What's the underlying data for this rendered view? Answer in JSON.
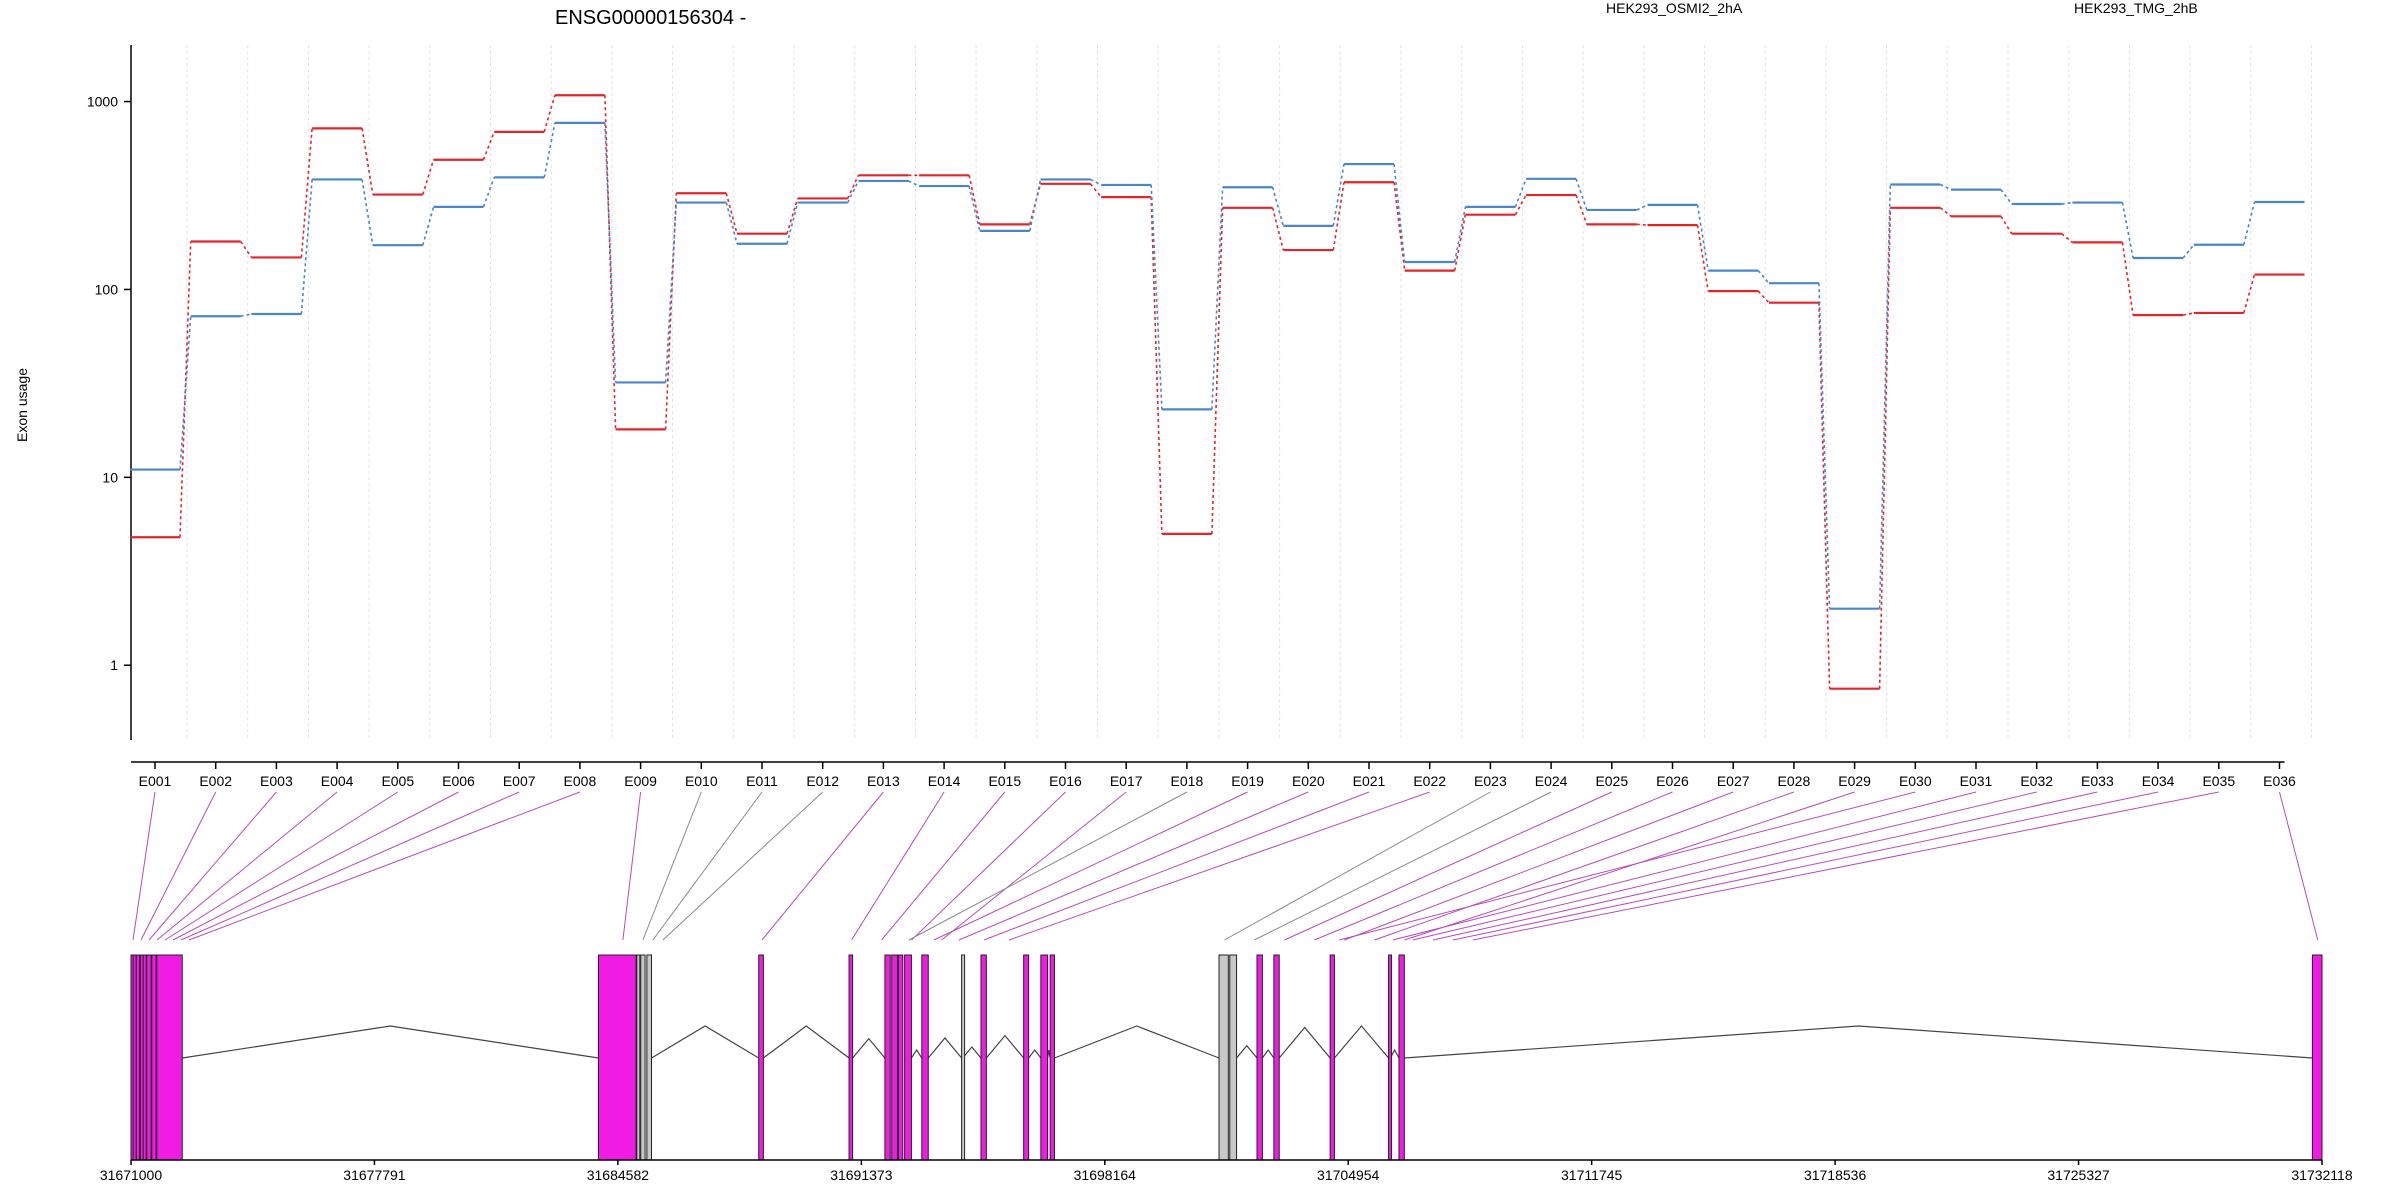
{
  "chart_data": {
    "type": "line",
    "title": "ENSG00000156304 -",
    "ylabel": "Exon usage",
    "yscale": "log",
    "ylim": [
      0.4,
      2000
    ],
    "yticks": [
      "1",
      "10",
      "100",
      "1000"
    ],
    "grid": true,
    "legend_placement": "top-right",
    "categories": [
      "E001",
      "E002",
      "E003",
      "E004",
      "E005",
      "E006",
      "E007",
      "E008",
      "E009",
      "E010",
      "E011",
      "E012",
      "E013",
      "E014",
      "E015",
      "E016",
      "E017",
      "E018",
      "E019",
      "E020",
      "E021",
      "E022",
      "E023",
      "E024",
      "E025",
      "E026",
      "E027",
      "E028",
      "E029",
      "E030",
      "E031",
      "E032",
      "E033",
      "E034",
      "E035",
      "E036"
    ],
    "series": [
      {
        "name": "HEK293_OSMI2_2hA",
        "color": "#e3242b",
        "values": [
          4.8,
          180,
          148,
          720,
          320,
          490,
          690,
          1080,
          18,
          325,
          198,
          305,
          405,
          405,
          222,
          365,
          310,
          5,
          272,
          162,
          372,
          126,
          250,
          318,
          222,
          220,
          98,
          85,
          0.75,
          272,
          245,
          198,
          178,
          73,
          75,
          120
        ]
      },
      {
        "name": "HEK293_TMG_2hB",
        "color": "#4a86c8",
        "values": [
          11,
          72,
          74,
          385,
          172,
          275,
          395,
          770,
          32,
          290,
          175,
          290,
          378,
          355,
          205,
          385,
          360,
          23,
          350,
          218,
          465,
          140,
          275,
          388,
          265,
          282,
          126,
          108,
          2,
          362,
          340,
          285,
          290,
          147,
          173,
          292
        ]
      }
    ],
    "gene_axis": {
      "ticks": [
        "31671000",
        "31677791",
        "31684582",
        "31691373",
        "31698164",
        "31704954",
        "31711745",
        "31718536",
        "31725327",
        "31732118"
      ],
      "range": [
        31671000,
        31732118
      ]
    }
  },
  "colors": {
    "exon_significant": "#f01ce4",
    "exon_nonsignificant": "#c8c8c8",
    "connector_significant": "#b84cb8",
    "connector_nonsignificant": "#8a8a8a"
  }
}
